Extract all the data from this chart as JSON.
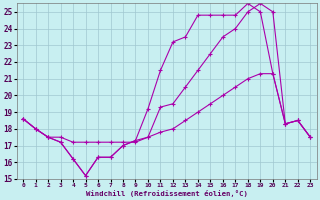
{
  "xlabel": "Windchill (Refroidissement éolien,°C)",
  "bg_color": "#c8eff1",
  "grid_color": "#a0c8d0",
  "line_color": "#aa00aa",
  "xlim": [
    -0.5,
    23.5
  ],
  "ylim": [
    15,
    25.5
  ],
  "yticks": [
    15,
    16,
    17,
    18,
    19,
    20,
    21,
    22,
    23,
    24,
    25
  ],
  "xticks": [
    0,
    1,
    2,
    3,
    4,
    5,
    6,
    7,
    8,
    9,
    10,
    11,
    12,
    13,
    14,
    15,
    16,
    17,
    18,
    19,
    20,
    21,
    22,
    23
  ],
  "line1_x": [
    0,
    1,
    2,
    3,
    4,
    5,
    6,
    7,
    8,
    9,
    10,
    11,
    12,
    13,
    14,
    15,
    16,
    17,
    18,
    19,
    20,
    21,
    22,
    23
  ],
  "line1_y": [
    18.6,
    18.0,
    17.5,
    17.2,
    16.2,
    15.2,
    16.3,
    16.3,
    17.0,
    17.3,
    19.2,
    21.5,
    23.2,
    23.5,
    24.8,
    24.8,
    24.8,
    24.8,
    25.5,
    25.0,
    21.3,
    18.3,
    18.5,
    17.5
  ],
  "line2_x": [
    0,
    1,
    2,
    3,
    4,
    5,
    6,
    7,
    8,
    9,
    10,
    11,
    12,
    13,
    14,
    15,
    16,
    17,
    18,
    19,
    20,
    21,
    22,
    23
  ],
  "line2_y": [
    18.6,
    18.0,
    17.5,
    17.5,
    17.2,
    17.2,
    17.2,
    17.2,
    17.2,
    17.2,
    17.5,
    17.8,
    18.0,
    18.5,
    19.0,
    19.5,
    20.0,
    20.5,
    21.0,
    21.3,
    21.3,
    18.3,
    18.5,
    17.5
  ],
  "line3_x": [
    0,
    1,
    2,
    3,
    4,
    5,
    6,
    7,
    8,
    9,
    10,
    11,
    12,
    13,
    14,
    15,
    16,
    17,
    18,
    19,
    20,
    21,
    22,
    23
  ],
  "line3_y": [
    18.6,
    18.0,
    17.5,
    17.2,
    16.2,
    15.2,
    16.3,
    16.3,
    17.0,
    17.3,
    17.5,
    19.3,
    19.5,
    20.5,
    21.5,
    22.5,
    23.5,
    24.0,
    25.0,
    25.5,
    25.0,
    18.3,
    18.5,
    17.5
  ]
}
